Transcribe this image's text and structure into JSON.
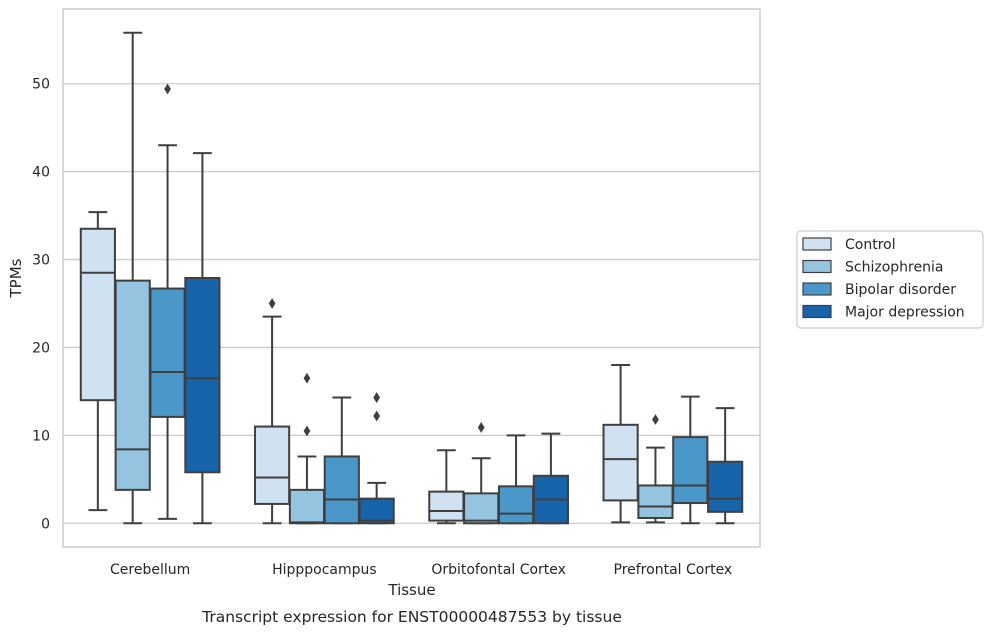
{
  "chart_data": {
    "type": "boxplot",
    "caption": "Transcript expression for ENST00000487553 by tissue",
    "xlabel": "Tissue",
    "ylabel": "TPMs",
    "ylim": [
      -2.7,
      58.5
    ],
    "yticks": [
      0,
      10,
      20,
      30,
      40,
      50
    ],
    "grid": "horizontal",
    "legend_position": "right",
    "categories": [
      "Cerebellum",
      "Hipppocampus",
      "Orbitofontal Cortex",
      "Prefrontal Cortex"
    ],
    "series": [
      {
        "name": "Control",
        "color": "#d0e1f2",
        "boxes": [
          {
            "whislo": 1.5,
            "q1": 14.0,
            "med": 28.5,
            "q3": 33.5,
            "whishi": 35.4,
            "fliers": []
          },
          {
            "whislo": 0.0,
            "q1": 2.2,
            "med": 5.2,
            "q3": 11.0,
            "whishi": 23.5,
            "fliers": [
              25.0
            ]
          },
          {
            "whislo": 0.0,
            "q1": 0.3,
            "med": 1.4,
            "q3": 3.6,
            "whishi": 8.3,
            "fliers": []
          },
          {
            "whislo": 0.1,
            "q1": 2.6,
            "med": 7.3,
            "q3": 11.2,
            "whishi": 18.0,
            "fliers": []
          }
        ]
      },
      {
        "name": "Schizophrenia",
        "color": "#94c4df",
        "boxes": [
          {
            "whislo": 0.0,
            "q1": 3.8,
            "med": 8.4,
            "q3": 27.6,
            "whishi": 55.8,
            "fliers": []
          },
          {
            "whislo": 0.0,
            "q1": 0.0,
            "med": 0.1,
            "q3": 3.8,
            "whishi": 7.6,
            "fliers": [
              10.5,
              16.5
            ]
          },
          {
            "whislo": 0.0,
            "q1": 0.0,
            "med": 0.3,
            "q3": 3.4,
            "whishi": 7.4,
            "fliers": [
              10.9
            ]
          },
          {
            "whislo": 0.1,
            "q1": 0.6,
            "med": 1.9,
            "q3": 4.3,
            "whishi": 8.6,
            "fliers": [
              11.8
            ]
          }
        ]
      },
      {
        "name": "Bipolar disorder",
        "color": "#4a98c9",
        "boxes": [
          {
            "whislo": 0.5,
            "q1": 12.1,
            "med": 17.2,
            "q3": 26.7,
            "whishi": 43.0,
            "fliers": [
              49.4
            ]
          },
          {
            "whislo": 0.0,
            "q1": 0.0,
            "med": 2.7,
            "q3": 7.6,
            "whishi": 14.3,
            "fliers": []
          },
          {
            "whislo": 0.0,
            "q1": 0.0,
            "med": 1.1,
            "q3": 4.2,
            "whishi": 10.0,
            "fliers": []
          },
          {
            "whislo": 0.0,
            "q1": 2.3,
            "med": 4.3,
            "q3": 9.8,
            "whishi": 14.4,
            "fliers": []
          }
        ]
      },
      {
        "name": "Major depression",
        "color": "#1764ab",
        "boxes": [
          {
            "whislo": 0.0,
            "q1": 5.8,
            "med": 16.5,
            "q3": 27.9,
            "whishi": 42.1,
            "fliers": []
          },
          {
            "whislo": 0.0,
            "q1": 0.0,
            "med": 0.3,
            "q3": 2.8,
            "whishi": 4.6,
            "fliers": [
              12.2,
              14.3
            ]
          },
          {
            "whislo": 0.0,
            "q1": 0.0,
            "med": 2.7,
            "q3": 5.4,
            "whishi": 10.2,
            "fliers": []
          },
          {
            "whislo": 0.0,
            "q1": 1.3,
            "med": 2.8,
            "q3": 7.0,
            "whishi": 13.1,
            "fliers": []
          }
        ]
      }
    ],
    "styles": {
      "box_edge": "#3f3f3f",
      "grid": "#cccccc",
      "frame": "#cccccc",
      "legend_border": "#cccccc",
      "background": "#ffffff"
    }
  }
}
